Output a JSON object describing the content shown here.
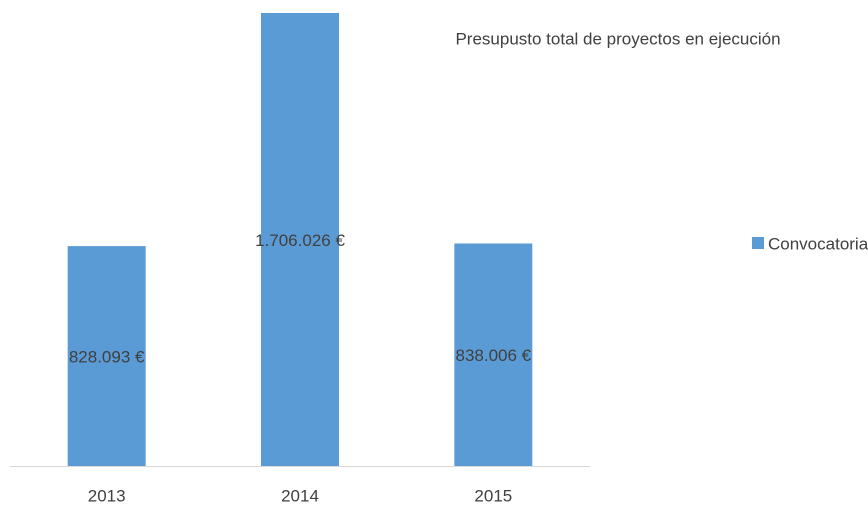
{
  "chart_data": {
    "type": "bar",
    "title": "Presupusto total de proyectos en ejecución",
    "categories": [
      "2013",
      "2014",
      "2015"
    ],
    "series": [
      {
        "name": "Convocatoria ONGD´s",
        "color": "#5b9bd5",
        "values": [
          828093,
          1706026,
          838006
        ],
        "value_labels": [
          "828.093 €",
          "1.706.026 €",
          "838.006 €"
        ]
      }
    ],
    "legend": "right"
  }
}
